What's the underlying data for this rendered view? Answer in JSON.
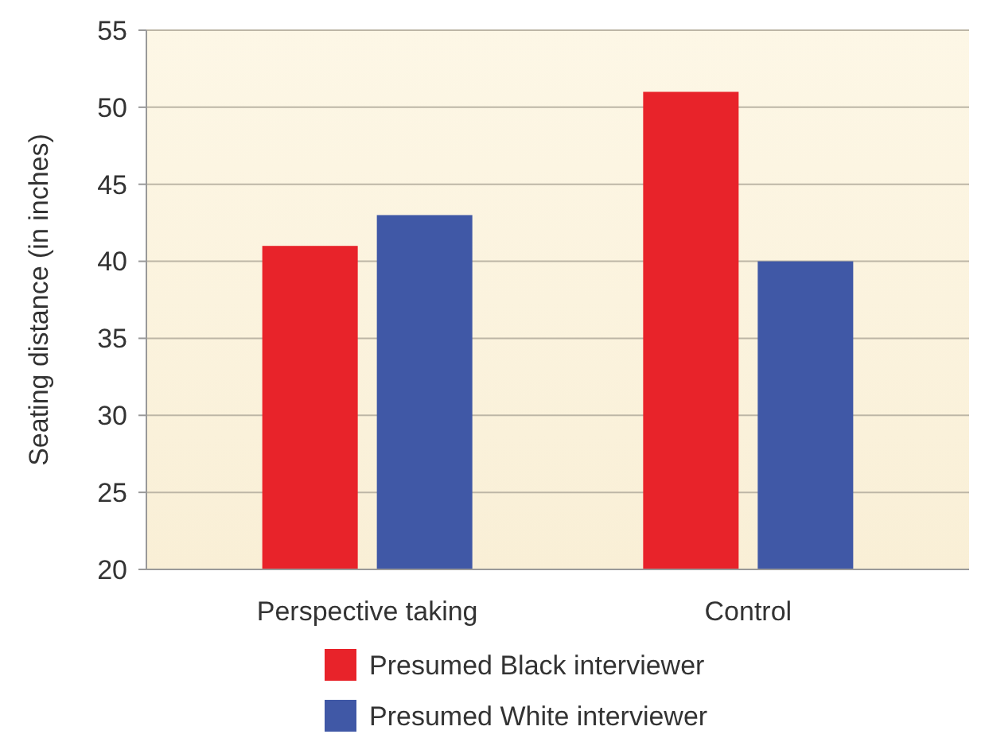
{
  "chart_data": {
    "type": "bar",
    "ylabel": "Seating distance (in inches)",
    "categories": [
      "Perspective taking",
      "Control"
    ],
    "series": [
      {
        "name": "Presumed Black interviewer",
        "color": "#e8232a",
        "values": [
          41,
          51
        ]
      },
      {
        "name": "Presumed White interviewer",
        "color": "#4058a6",
        "values": [
          43,
          40
        ]
      }
    ],
    "ylim": [
      20,
      55
    ],
    "yticks": [
      20,
      25,
      30,
      35,
      40,
      45,
      50,
      55
    ],
    "grid": "y",
    "legend": "bottom"
  }
}
